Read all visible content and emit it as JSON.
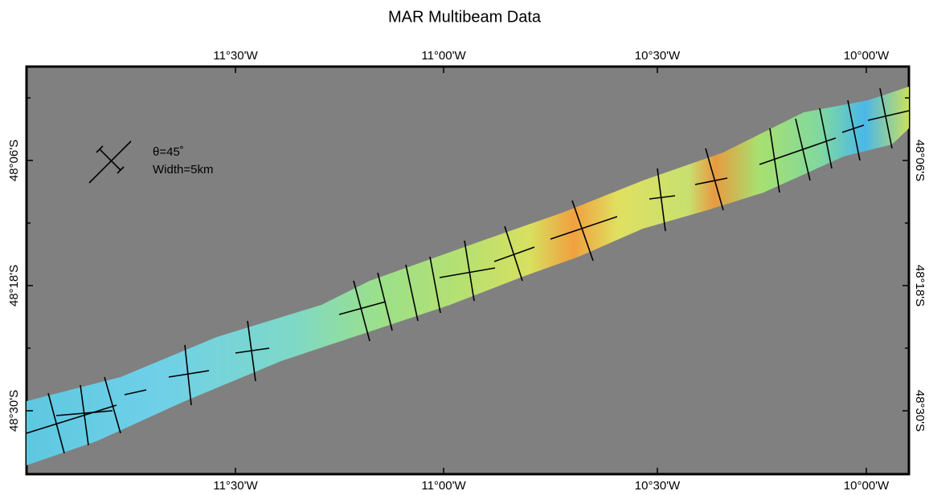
{
  "title": "MAR Multibeam Data",
  "x_labels": [
    "11°30'W",
    "11°00'W",
    "10°30'W",
    "10°00'W"
  ],
  "y_labels": [
    "48°06'S",
    "48°18'S",
    "48°30'S"
  ],
  "legend": {
    "theta": "θ=45˚",
    "width": "Width=5km"
  }
}
